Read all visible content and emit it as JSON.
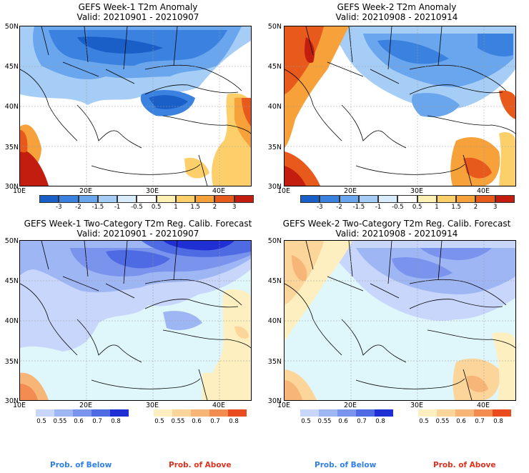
{
  "panels": [
    {
      "title": "GEFS Week-1 T2m Anomaly",
      "subtitle": "Valid: 20210901 - 20210907"
    },
    {
      "title": "GEFS Week-2 T2m Anomaly",
      "subtitle": "Valid: 20210908 - 20210914"
    },
    {
      "title": "GEFS Week-1 Two-Category T2m Reg. Calib. Forecast",
      "subtitle": "Valid: 20210901 - 20210907"
    },
    {
      "title": "GEFS Week-2 Two-Category T2m Reg. Calib. Forecast",
      "subtitle": "Valid: 20210908 - 20210914"
    }
  ],
  "lat_labels": [
    "50N",
    "45N",
    "40N",
    "35N",
    "30N"
  ],
  "lon_labels": [
    "10E",
    "20E",
    "30E",
    "40E"
  ],
  "anomaly_colorbar": {
    "ticks": [
      "-3",
      "-2",
      "-1.5",
      "-1",
      "-0.5",
      "0.5",
      "1",
      "1.5",
      "2",
      "3"
    ],
    "colors": [
      "#1a5fc7",
      "#3b82e0",
      "#6aa6ee",
      "#a6cdf5",
      "#d9ecfb",
      "#ffffff",
      "#fff0b3",
      "#fdcf6a",
      "#f7a13a",
      "#e85a1c",
      "#c31d10"
    ]
  },
  "prob_below": {
    "ticks": [
      "0.5",
      "0.55",
      "0.6",
      "0.7",
      "0.8"
    ],
    "colors": [
      "#c8d6fb",
      "#9fb6f5",
      "#7a94ee",
      "#4f6be4",
      "#1f2fd3"
    ]
  },
  "prob_above": {
    "ticks": [
      "0.5",
      "0.55",
      "0.6",
      "0.7",
      "0.8"
    ],
    "colors": [
      "#fdefc0",
      "#fbd59a",
      "#f7b577",
      "#f28c50",
      "#ea4b1f"
    ]
  },
  "footer": {
    "below_label": "Prob. of Below",
    "above_label": "Prob. of Above",
    "below_color": "#2f7fe6",
    "above_color": "#e0301e"
  },
  "map_colors": {
    "sea_prob": "#dff7fb",
    "land_neutral": "#ffffff"
  }
}
